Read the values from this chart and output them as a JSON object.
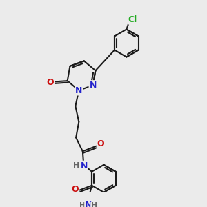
{
  "background_color": "#ebebeb",
  "bond_color": "#1a1a1a",
  "bond_width": 1.5,
  "atom_colors": {
    "N": "#2222cc",
    "O": "#cc1111",
    "Cl": "#22aa22",
    "H": "#666666",
    "C": "#1a1a1a"
  }
}
